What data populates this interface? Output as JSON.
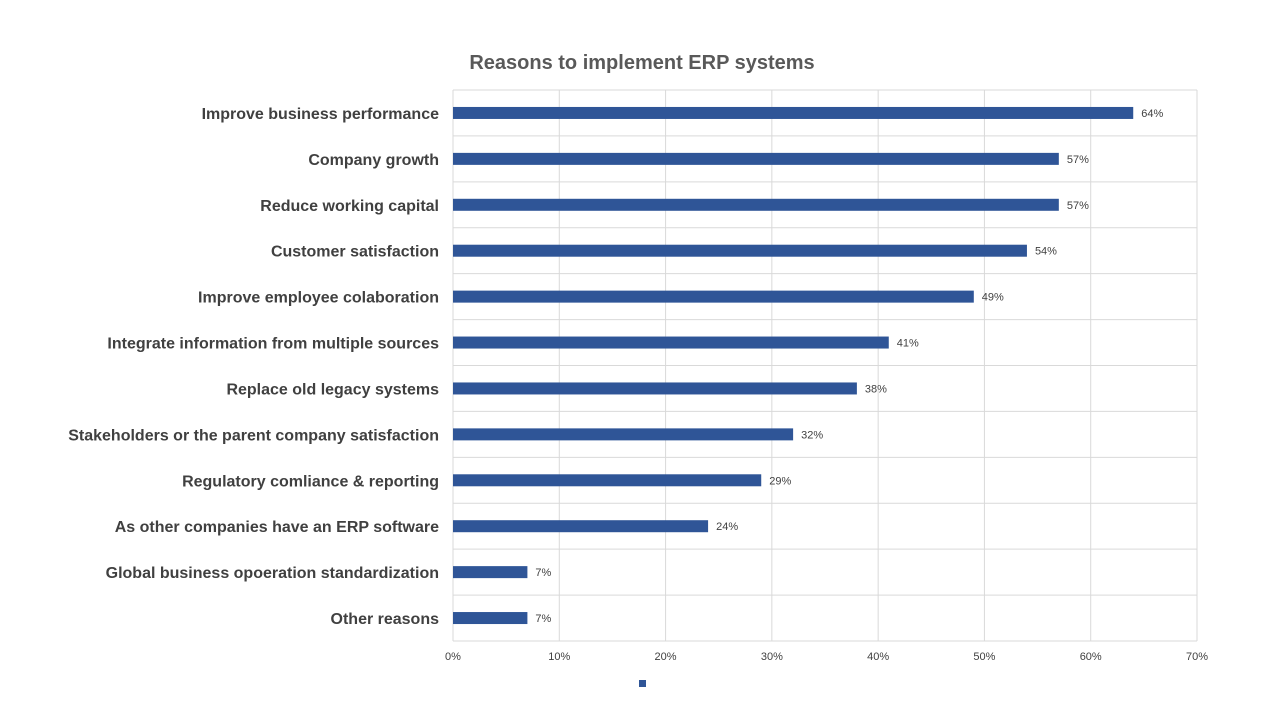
{
  "chart_data": {
    "type": "bar",
    "orientation": "horizontal",
    "title": "Reasons to implement ERP systems",
    "categories": [
      "Improve business performance",
      "Company growth",
      "Reduce working capital",
      "Customer satisfaction",
      "Improve employee colaboration",
      "Integrate information from multiple sources",
      "Replace old legacy systems",
      "Stakeholders or the parent company satisfaction",
      "Regulatory comliance & reporting",
      "As other companies have an ERP software",
      "Global business opoeration standardization",
      "Other reasons"
    ],
    "values": [
      64,
      57,
      57,
      54,
      49,
      41,
      38,
      32,
      29,
      24,
      7,
      7
    ],
    "data_labels": [
      "64%",
      "57%",
      "57%",
      "54%",
      "49%",
      "41%",
      "38%",
      "32%",
      "29%",
      "24%",
      "7%",
      "7%"
    ],
    "xlim": [
      0,
      70
    ],
    "x_ticks": [
      0,
      10,
      20,
      30,
      40,
      50,
      60,
      70
    ],
    "x_tick_labels": [
      "0%",
      "10%",
      "20%",
      "30%",
      "40%",
      "50%",
      "60%",
      "70%"
    ],
    "xlabel": "",
    "ylabel": "",
    "grid": true,
    "legend": "bottom",
    "bar_color": "#2f5597"
  }
}
